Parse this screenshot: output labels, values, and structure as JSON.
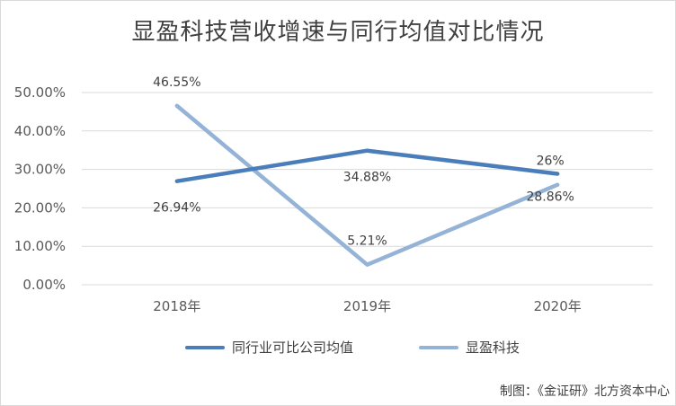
{
  "chart_data": {
    "type": "line",
    "title": "显盈科技营收增速与同行均值对比情况",
    "categories": [
      "2018年",
      "2019年",
      "2020年"
    ],
    "yticks": [
      "0.00%",
      "10.00%",
      "20.00%",
      "30.00%",
      "40.00%",
      "50.00%"
    ],
    "ylim": [
      0,
      50
    ],
    "grid": true,
    "legend_position": "bottom",
    "series": [
      {
        "name": "同行业可比公司均值",
        "color": "#4a7ebb",
        "values": [
          26.94,
          34.88,
          28.86
        ],
        "data_labels": [
          "26.94%",
          "34.88%",
          "28.86%"
        ]
      },
      {
        "name": "显盈科技",
        "color": "#95b3d7",
        "values": [
          46.55,
          5.21,
          26
        ],
        "data_labels": [
          "46.55%",
          "5.21%",
          "26%"
        ]
      }
    ]
  },
  "credit": "制图：《金证研》北方资本中心"
}
